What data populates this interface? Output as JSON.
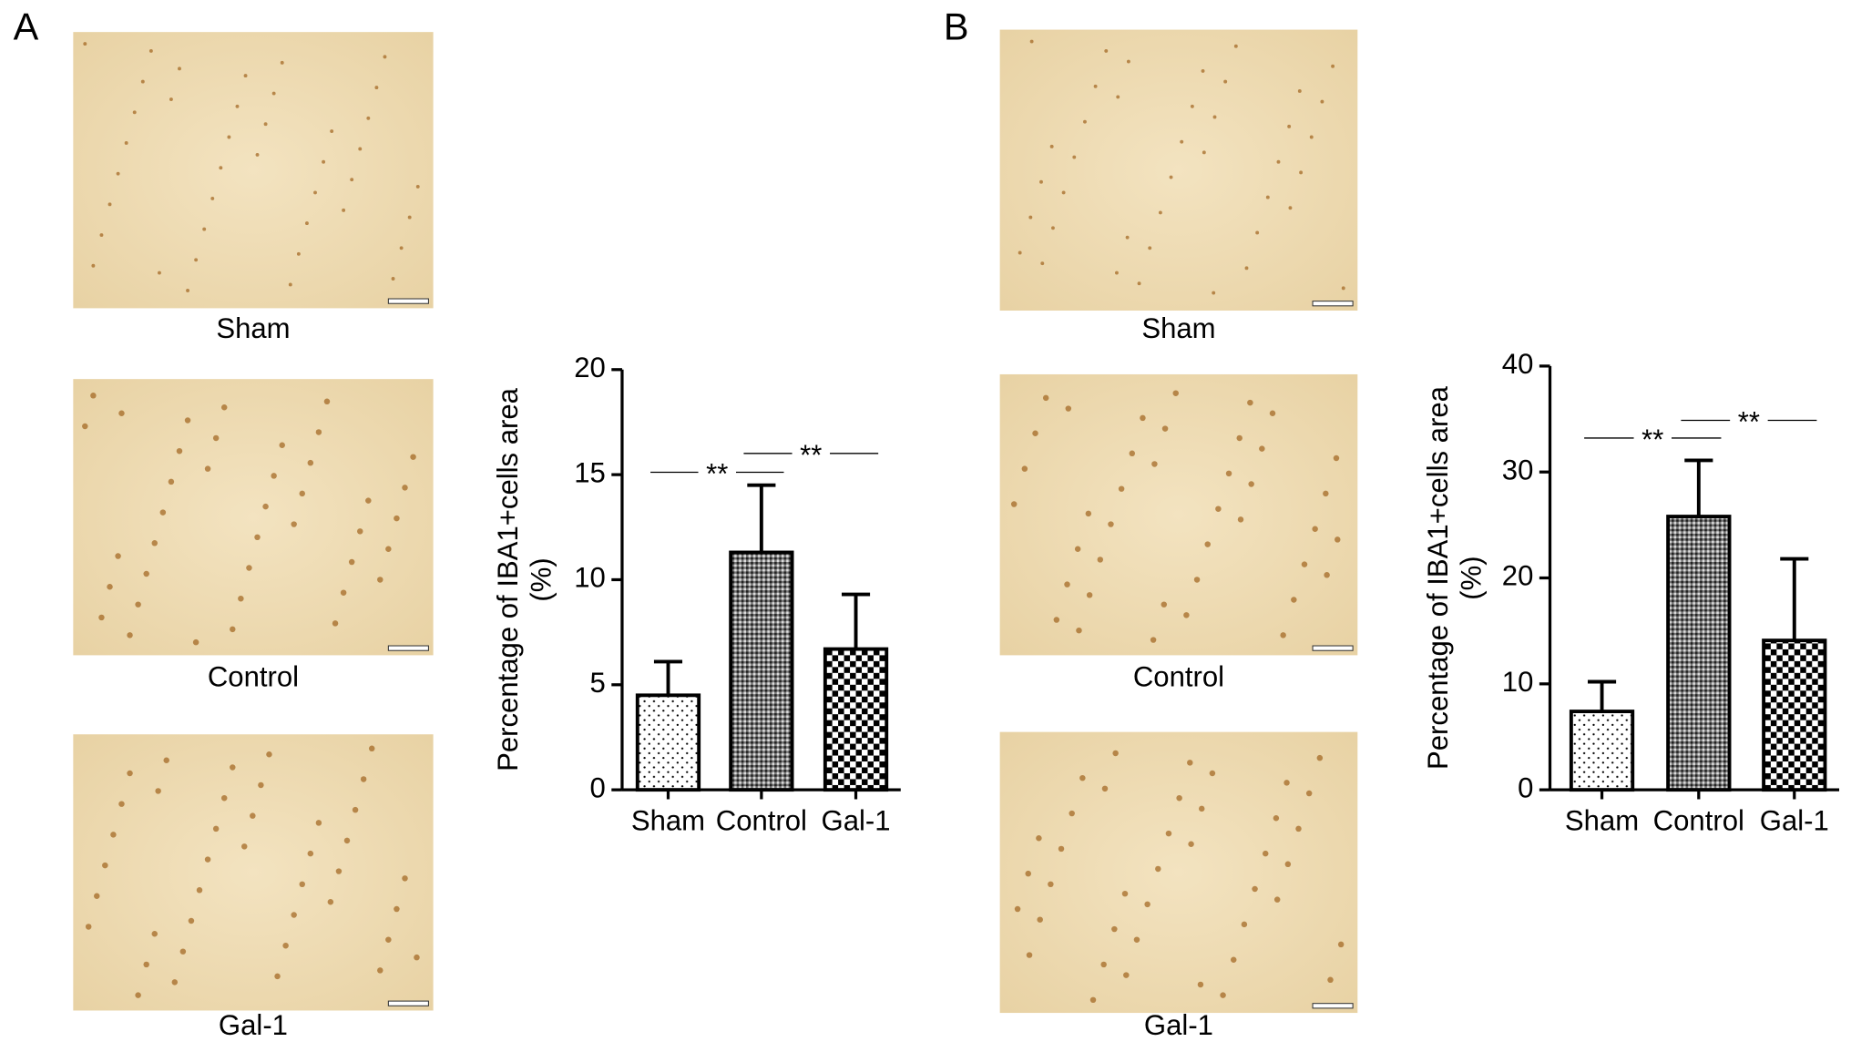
{
  "panels": [
    {
      "label": "A",
      "images": [
        "Sham",
        "Control",
        "Gal-1"
      ]
    },
    {
      "label": "B",
      "images": [
        "Sham",
        "Control",
        "Gal-1"
      ]
    }
  ],
  "chart_data": [
    {
      "type": "bar",
      "ylabel": "Percentage of IBA1+cells area",
      "ylabel_unit": "(%)",
      "categories": [
        "Sham",
        "Control",
        "Gal-1"
      ],
      "values": [
        4.5,
        11.3,
        6.7
      ],
      "errors": [
        1.6,
        3.2,
        2.6
      ],
      "ylim": [
        0,
        20
      ],
      "yticks": [
        0,
        5,
        10,
        15,
        20
      ],
      "annotations": [
        {
          "text": "**",
          "between": [
            0,
            1
          ]
        },
        {
          "text": "**",
          "between": [
            1,
            2
          ]
        }
      ]
    },
    {
      "type": "bar",
      "ylabel": "Percentage of IBA1+cells area",
      "ylabel_unit": "(%)",
      "categories": [
        "Sham",
        "Control",
        "Gal-1"
      ],
      "values": [
        7.4,
        25.8,
        14.1
      ],
      "errors": [
        2.8,
        5.3,
        7.7
      ],
      "ylim": [
        0,
        40
      ],
      "yticks": [
        0,
        10,
        20,
        30,
        40
      ],
      "annotations": [
        {
          "text": "**",
          "between": [
            0,
            1
          ]
        },
        {
          "text": "**",
          "between": [
            1,
            2
          ]
        }
      ]
    }
  ]
}
